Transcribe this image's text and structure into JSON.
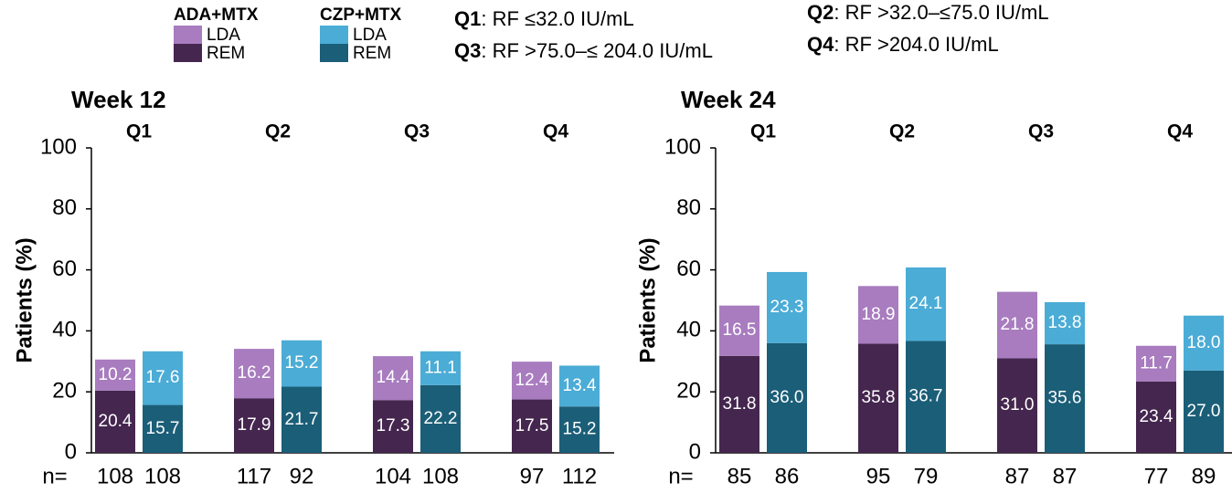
{
  "legend": {
    "groups": [
      {
        "name": "ADA+MTX",
        "items": [
          {
            "name": "LDA",
            "color": "#a87cbf"
          },
          {
            "name": "REM",
            "color": "#45264f"
          }
        ]
      },
      {
        "name": "CZP+MTX",
        "items": [
          {
            "name": "LDA",
            "color": "#4bacd6"
          },
          {
            "name": "REM",
            "color": "#1b5e78"
          }
        ]
      }
    ]
  },
  "quartiles": [
    {
      "label": "Q1",
      "definition": ": RF ≤32.0 IU/mL"
    },
    {
      "label": "Q2",
      "definition": ": RF >32.0–≤75.0 IU/mL"
    },
    {
      "label": "Q3",
      "definition": ": RF >75.0–≤ 204.0 IU/mL"
    },
    {
      "label": "Q4",
      "definition": ": RF >204.0 IU/mL"
    }
  ],
  "chart_data": [
    {
      "type": "stacked-bar",
      "title": "Week 12",
      "y_label": "Patients (%)",
      "categories": [
        "Q1",
        "Q2",
        "Q3",
        "Q4"
      ],
      "ylim": [
        0,
        100
      ],
      "yticks": [
        0,
        20,
        40,
        60,
        80,
        100
      ],
      "n_label": "n=",
      "bars": [
        {
          "segments": [
            {
              "values": [
                10.2,
                16.2,
                14.4,
                12.4
              ],
              "value_labels": [
                "10.2",
                "16.2",
                "14.4",
                "12.4"
              ]
            },
            {
              "values": [
                20.4,
                17.9,
                17.3,
                17.5
              ],
              "value_labels": [
                "20.4",
                "17.9",
                "17.3",
                "17.5"
              ]
            }
          ],
          "n": [
            108,
            117,
            104,
            97
          ]
        },
        {
          "segments": [
            {
              "values": [
                17.6,
                15.2,
                11.1,
                13.4
              ],
              "value_labels": [
                "17.6",
                "15.2",
                "11.1",
                "13.4"
              ]
            },
            {
              "values": [
                15.7,
                21.7,
                22.2,
                15.2
              ],
              "value_labels": [
                "15.7",
                "21.7",
                "22.2",
                "15.2"
              ]
            }
          ],
          "n": [
            108,
            92,
            108,
            112
          ]
        }
      ]
    },
    {
      "type": "stacked-bar",
      "title": "Week 24",
      "y_label": "Patients (%)",
      "categories": [
        "Q1",
        "Q2",
        "Q3",
        "Q4"
      ],
      "ylim": [
        0,
        100
      ],
      "yticks": [
        0,
        20,
        40,
        60,
        80,
        100
      ],
      "n_label": "n=",
      "bars": [
        {
          "segments": [
            {
              "values": [
                16.5,
                18.9,
                21.8,
                11.7
              ],
              "value_labels": [
                "16.5",
                "18.9",
                "21.8",
                "11.7"
              ]
            },
            {
              "values": [
                31.8,
                35.8,
                31.0,
                23.4
              ],
              "value_labels": [
                "31.8",
                "35.8",
                "31.0",
                "23.4"
              ]
            }
          ],
          "n": [
            85,
            95,
            87,
            77
          ]
        },
        {
          "segments": [
            {
              "values": [
                23.3,
                24.1,
                13.8,
                18.0
              ],
              "value_labels": [
                "23.3",
                "24.1",
                "13.8",
                "18.0"
              ]
            },
            {
              "values": [
                36.0,
                36.7,
                35.6,
                27.0
              ],
              "value_labels": [
                "36.0",
                "36.7",
                "35.6",
                "27.0"
              ]
            }
          ],
          "n": [
            86,
            79,
            87,
            89
          ]
        }
      ]
    }
  ]
}
